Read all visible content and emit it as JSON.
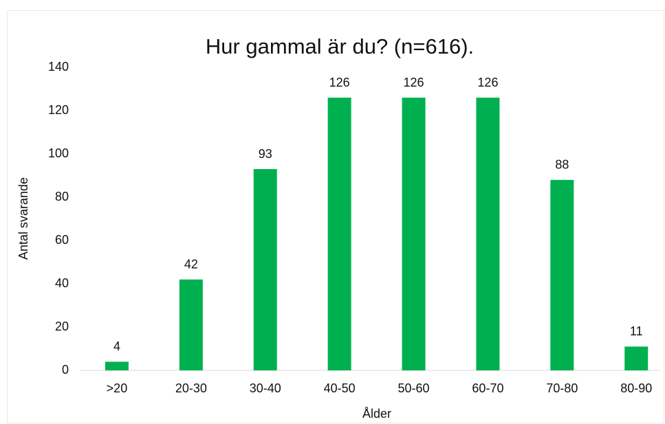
{
  "chart_data": {
    "type": "bar",
    "title": "Hur gammal är du? (n=616).",
    "x_label": "Ålder",
    "y_label": "Antal svarande",
    "categories": [
      ">20",
      "20-30",
      "30-40",
      "40-50",
      "50-60",
      "60-70",
      "70-80",
      "80-90"
    ],
    "values": [
      4,
      42,
      93,
      126,
      126,
      126,
      88,
      11
    ],
    "color": "#00b050",
    "ylim": [
      0,
      140
    ],
    "yticks": [
      0,
      20,
      40,
      60,
      80,
      100,
      120,
      140
    ],
    "grid": false
  }
}
